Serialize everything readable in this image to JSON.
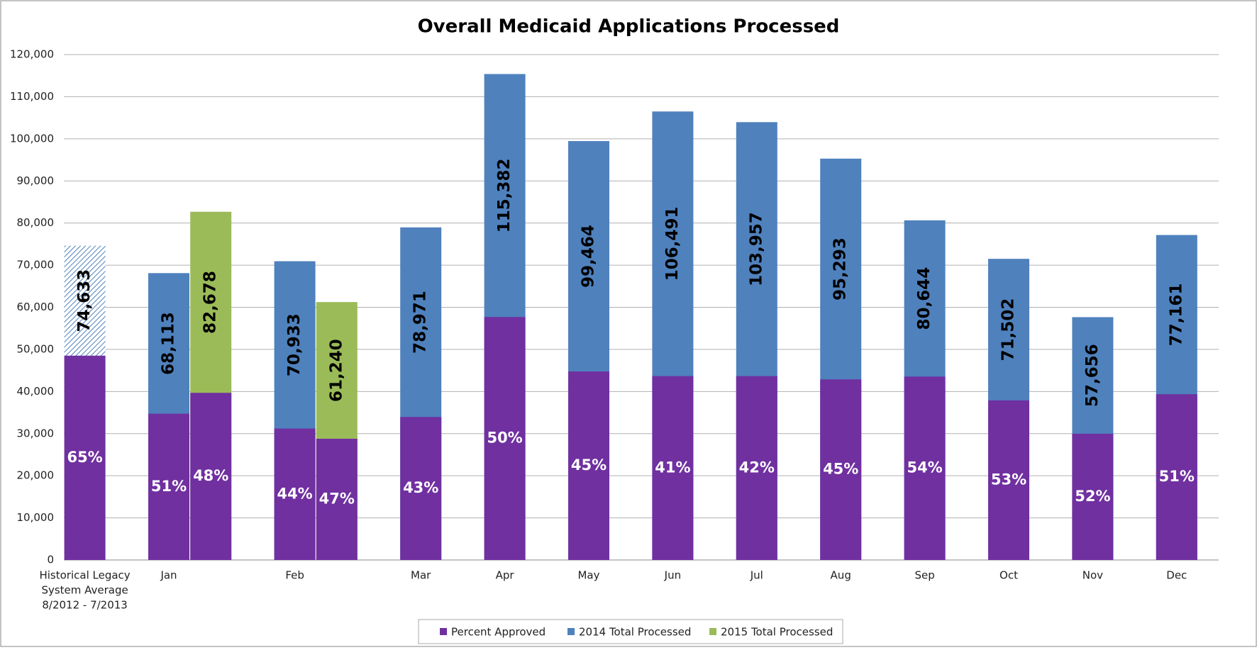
{
  "chart_data": {
    "type": "bar",
    "title": "Overall Medicaid Applications Processed",
    "categories": [
      [
        "Historical Legacy",
        "System Average",
        "8/2012 - 7/2013"
      ],
      "Jan",
      "Feb",
      "Mar",
      "Apr",
      "May",
      "Jun",
      "Jul",
      "Aug",
      "Sep",
      "Oct",
      "Nov",
      "Dec"
    ],
    "hatched": [
      0
    ],
    "approved": {
      "name": "Percent Approved",
      "color": "#7030a0"
    },
    "series": [
      {
        "name": "2014 Total Processed",
        "color": "#4f81bd",
        "values": [
          74633,
          68113,
          70933,
          78971,
          115382,
          99464,
          106491,
          103957,
          95293,
          80644,
          71502,
          57656,
          77161
        ],
        "value_labels": [
          "74,633",
          "68,113",
          "70,933",
          "78,971",
          "115,382",
          "99,464",
          "106,491",
          "103,957",
          "95,293",
          "80,644",
          "71,502",
          "57,656",
          "77,161"
        ],
        "approved_pct": [
          65,
          51,
          44,
          43,
          50,
          45,
          41,
          42,
          45,
          54,
          53,
          52,
          51
        ],
        "approved_pct_labels": [
          "65%",
          "51%",
          "44%",
          "43%",
          "50%",
          "45%",
          "41%",
          "42%",
          "45%",
          "54%",
          "53%",
          "52%",
          "51%"
        ]
      },
      {
        "name": "2015 Total Processed",
        "color": "#9bbb59",
        "values": [
          null,
          82678,
          61240,
          null,
          null,
          null,
          null,
          null,
          null,
          null,
          null,
          null,
          null
        ],
        "value_labels": [
          null,
          "82,678",
          "61,240",
          null,
          null,
          null,
          null,
          null,
          null,
          null,
          null,
          null,
          null
        ],
        "approved_pct": [
          null,
          48,
          47,
          null,
          null,
          null,
          null,
          null,
          null,
          null,
          null,
          null,
          null
        ],
        "approved_pct_labels": [
          null,
          "48%",
          "47%",
          null,
          null,
          null,
          null,
          null,
          null,
          null,
          null,
          null,
          null
        ]
      }
    ],
    "ylim": [
      0,
      120000
    ],
    "yticks": [
      0,
      {
        "value": 10000,
        "label": "10,000"
      },
      {
        "value": 20000,
        "label": "20,000"
      },
      {
        "value": 30000,
        "label": "30,000"
      },
      {
        "value": 40000,
        "label": "40,000"
      },
      {
        "value": 50000,
        "label": "50,000"
      },
      {
        "value": 60000,
        "label": "60,000"
      },
      {
        "value": 70000,
        "label": "70,000"
      },
      {
        "value": 80000,
        "label": "80,000"
      },
      {
        "value": 90000,
        "label": "90,000"
      },
      {
        "value": 100000,
        "label": "100,000"
      },
      {
        "value": 110000,
        "label": "110,000"
      },
      {
        "value": 120000,
        "label": "120,000"
      }
    ],
    "grid": true,
    "legend": "bottom"
  }
}
